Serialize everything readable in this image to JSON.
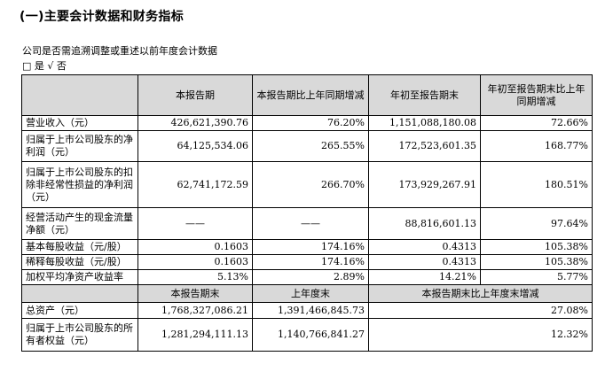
{
  "title": "(一)主要会计数据和财务指标",
  "note1": "公司是否需追溯调整或重述以前年度会计数据",
  "note2": "□ 是 √ 否",
  "table1": {
    "headers": [
      "本报告期",
      "本报告期比上年同期增减",
      "年初至报告期末",
      "年初至报告期末比上年同期增减"
    ],
    "rows": [
      {
        "label": "营业收入（元）",
        "v1": "426,621,390.76",
        "v2": "76.20%",
        "v3": "1,151,088,180.08",
        "v4": "72.66%"
      },
      {
        "label": "归属于上市公司股东的净利润（元）",
        "v1": "64,125,534.06",
        "v2": "265.55%",
        "v3": "172,523,601.35",
        "v4": "168.77%"
      },
      {
        "label": "归属于上市公司股东的扣除非经常性损益的净利润（元）",
        "v1": "62,741,172.59",
        "v2": "266.70%",
        "v3": "173,929,267.91",
        "v4": "180.51%"
      },
      {
        "label": "经营活动产生的现金流量净额（元）",
        "v1": "——",
        "v2": "——",
        "v3": "88,816,601.13",
        "v4": "97.64%"
      },
      {
        "label": "基本每股收益（元/股）",
        "v1": "0.1603",
        "v2": "174.16%",
        "v3": "0.4313",
        "v4": "105.38%"
      },
      {
        "label": "稀释每股收益（元/股）",
        "v1": "0.1603",
        "v2": "174.16%",
        "v3": "0.4313",
        "v4": "105.38%"
      },
      {
        "label": "加权平均净资产收益率",
        "v1": "5.13%",
        "v2": "2.89%",
        "v3": "14.21%",
        "v4": "5.77%"
      }
    ]
  },
  "table2": {
    "headers": [
      "本报告期末",
      "上年度末",
      "本报告期末比上年度末增减"
    ],
    "rows": [
      {
        "label": "总资产（元）",
        "v1": "1,768,327,086.21",
        "v2": "1,391,466,845.73",
        "v3": "27.08%"
      },
      {
        "label": "归属于上市公司股东的所有者权益（元）",
        "v1": "1,281,294,111.13",
        "v2": "1,140,766,841.27",
        "v3": "12.32%"
      }
    ]
  }
}
